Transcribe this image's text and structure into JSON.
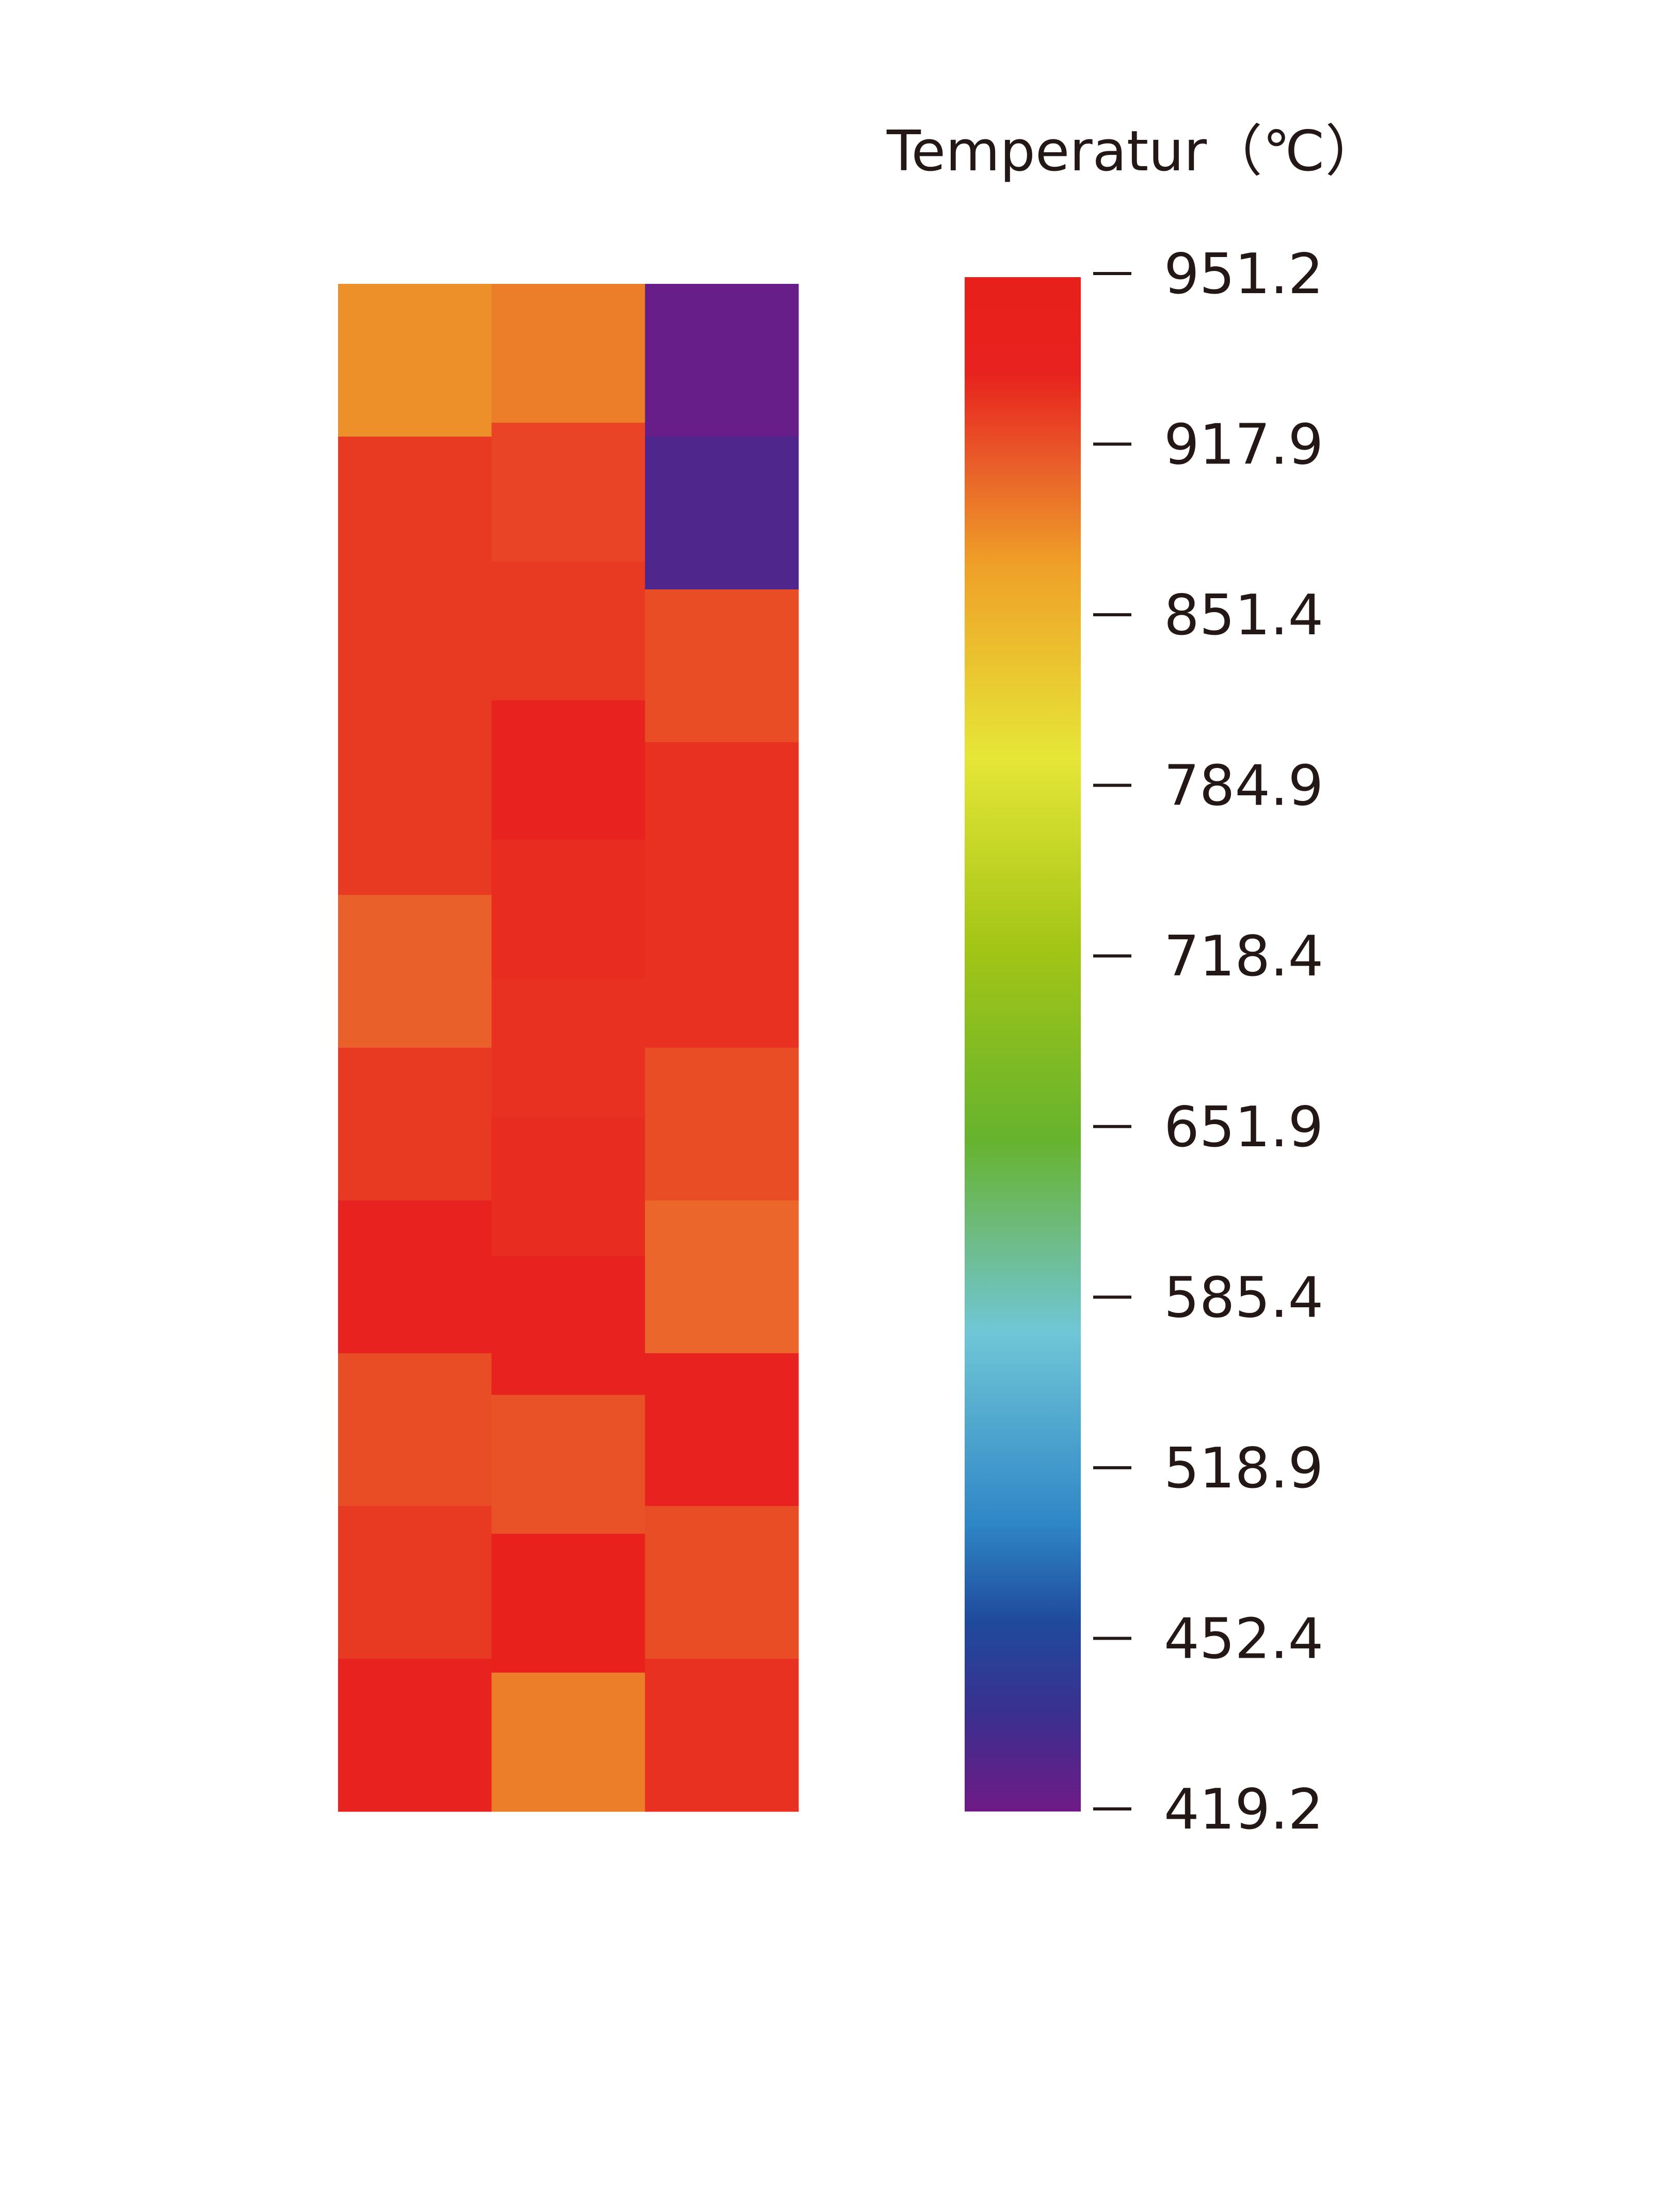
{
  "chart_data": {
    "type": "heatmap",
    "title": "Temperatur（℃）",
    "colorbar": {
      "label": "Temperatur（℃）",
      "range": [
        419.2,
        951.2
      ],
      "ticks": [
        "951.2",
        "917.9",
        "851.4",
        "784.9",
        "718.4",
        "651.9",
        "585.4",
        "518.9",
        "452.4",
        "419.2"
      ],
      "colormap": [
        {
          "value": 419.2,
          "color": "#701A86"
        },
        {
          "value": 452.4,
          "color": "#3B2F8F"
        },
        {
          "value": 485.0,
          "color": "#1F4A9C"
        },
        {
          "value": 518.9,
          "color": "#2F86C6"
        },
        {
          "value": 585.4,
          "color": "#6FC6D6"
        },
        {
          "value": 620.0,
          "color": "#6EBB80"
        },
        {
          "value": 651.9,
          "color": "#66B32E"
        },
        {
          "value": 718.4,
          "color": "#A2C516"
        },
        {
          "value": 784.9,
          "color": "#E6E637"
        },
        {
          "value": 851.4,
          "color": "#EFA028"
        },
        {
          "value": 885.0,
          "color": "#E9602A"
        },
        {
          "value": 917.9,
          "color": "#E8221E"
        },
        {
          "value": 951.2,
          "color": "#E8201C"
        }
      ]
    },
    "columns": [
      {
        "values": [
          860,
          905,
          905,
          905,
          885,
          905,
          920,
          895,
          905,
          918
        ]
      },
      {
        "values": [
          870,
          900,
          905,
          918,
          912,
          910,
          912,
          918,
          893,
          932,
          870
        ]
      },
      {
        "values": [
          425,
          440,
          895,
          910,
          910,
          895,
          882,
          925,
          895,
          910
        ]
      }
    ]
  }
}
